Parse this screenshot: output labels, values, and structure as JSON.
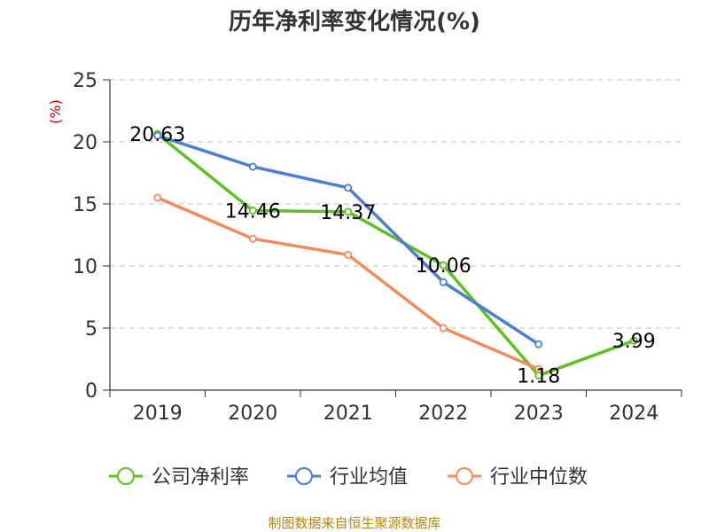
{
  "chart_data": {
    "type": "line",
    "title": "历年净利率变化情况(%)",
    "ylabel": "(%)",
    "xlabel": "",
    "categories": [
      "2019",
      "2020",
      "2021",
      "2022",
      "2023",
      "2024"
    ],
    "ylim": [
      0,
      25
    ],
    "yticks": [
      0,
      5,
      10,
      15,
      20,
      25
    ],
    "grid": true,
    "legend_position": "bottom",
    "series": [
      {
        "name": "公司净利率",
        "color": "#5dc21e",
        "values": [
          20.63,
          14.46,
          14.37,
          10.06,
          1.18,
          3.99
        ],
        "data_labels": [
          "20.63",
          "14.46",
          "14.37",
          "10.06",
          "1.18",
          "3.99"
        ]
      },
      {
        "name": "行业均值",
        "color": "#4a7fd4",
        "values": [
          20.5,
          18.0,
          16.3,
          8.7,
          3.7,
          null
        ]
      },
      {
        "name": "行业中位数",
        "color": "#f28c5a",
        "values": [
          15.5,
          12.2,
          10.9,
          5.0,
          1.7,
          null
        ]
      }
    ],
    "source": "制图数据来自恒生聚源数据库"
  }
}
